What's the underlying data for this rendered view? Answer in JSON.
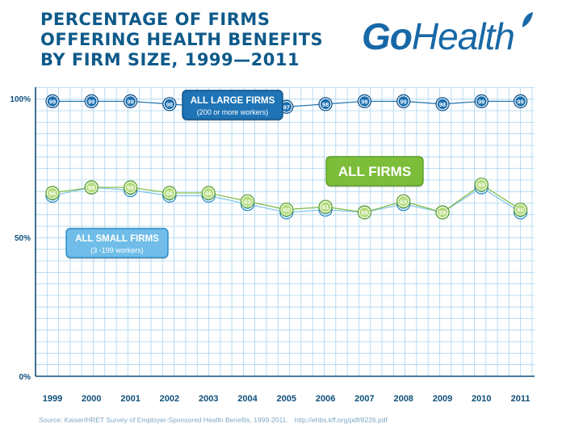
{
  "title_lines": [
    "PERCENTAGE OF FIRMS",
    "OFFERING HEALTH BENEFITS",
    "BY FIRM SIZE, 1999—2011"
  ],
  "logo": {
    "text_go": "Go",
    "text_health": "Health"
  },
  "source": {
    "text": "Source: Kaiser/HRET Survey of Employer-Sponsored Health Benefits, 1999-2011.",
    "url": "http://ehbs.kff.org/pdf/8226.pdf"
  },
  "colors": {
    "title": "#0e5a8a",
    "grid": "#a9d4ee",
    "large": "#1b6fb0",
    "all": "#7ab93d",
    "small": "#7fc4ea"
  },
  "chart_data": {
    "type": "line",
    "x": [
      "1999",
      "2000",
      "2001",
      "2002",
      "2003",
      "2004",
      "2005",
      "2006",
      "2007",
      "2008",
      "2009",
      "2010",
      "2011"
    ],
    "ylim": [
      0,
      100
    ],
    "yticks": [
      "0%",
      "50%",
      "100%"
    ],
    "series": [
      {
        "key": "large",
        "name": "ALL LARGE FIRMS",
        "subname": "(200 or more workers)",
        "values": [
          99,
          99,
          99,
          98,
          97,
          98,
          97,
          98,
          99,
          99,
          98,
          99,
          99
        ]
      },
      {
        "key": "all",
        "name": "ALL FIRMS",
        "subname": "",
        "values": [
          66,
          68,
          68,
          66,
          66,
          63,
          60,
          61,
          59,
          63,
          59,
          69,
          60
        ]
      },
      {
        "key": "small",
        "name": "ALL SMALL FIRMS",
        "subname": "(3 -199 workers)",
        "values": [
          65,
          68,
          67,
          65,
          65,
          62,
          59,
          60,
          59,
          62,
          59,
          68,
          59
        ]
      }
    ]
  }
}
